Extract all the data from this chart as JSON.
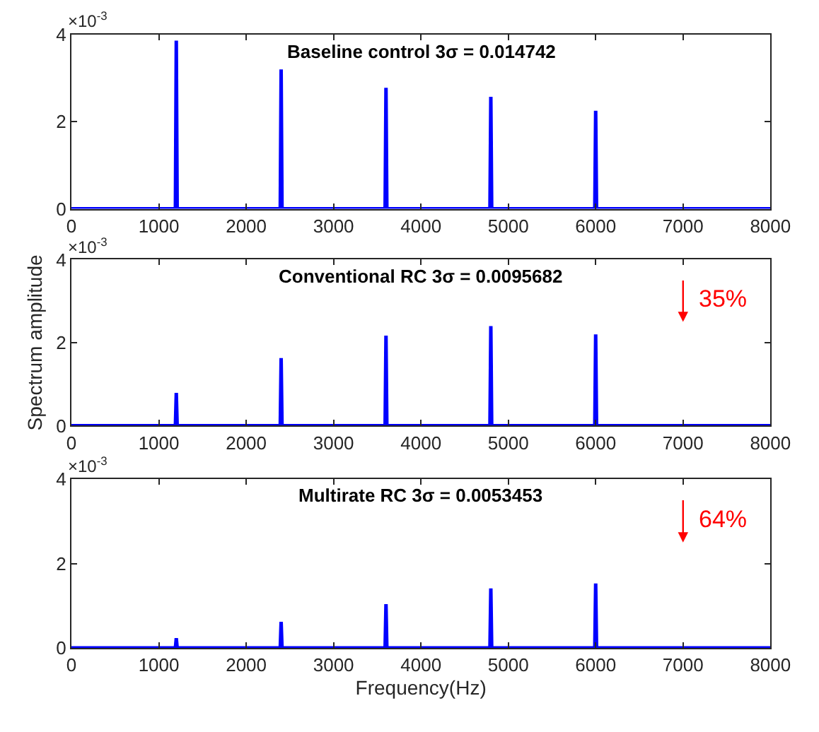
{
  "chart_data": [
    {
      "type": "line",
      "title": "Baseline control 3σ = 0.014742",
      "x": [
        0,
        1190,
        1200,
        1210,
        2390,
        2400,
        2410,
        3590,
        3600,
        3610,
        4790,
        4800,
        4810,
        5990,
        6000,
        6010,
        8000
      ],
      "series": [
        {
          "color": "#0000ff",
          "values": [
            0,
            0,
            3.86,
            0,
            0,
            3.2,
            0,
            0,
            2.78,
            0,
            0,
            2.57,
            0,
            0,
            2.25,
            0,
            0
          ]
        }
      ],
      "xlim": [
        0,
        8000
      ],
      "xticks": [
        0,
        1000,
        2000,
        3000,
        4000,
        5000,
        6000,
        7000,
        8000
      ],
      "ylim": [
        0,
        4
      ],
      "yticks": [
        0,
        2,
        4
      ],
      "marker": "none",
      "line_style": "solid",
      "annotations": [
        "×10$^{-3}$"
      ]
    },
    {
      "type": "line",
      "title": "Conventional RC 3σ = 0.0095682",
      "ylabel": "Spectrum amplitude",
      "x": [
        0,
        1190,
        1200,
        1210,
        2390,
        2400,
        2410,
        3590,
        3600,
        3610,
        4790,
        4800,
        4810,
        5990,
        6000,
        6010,
        8000
      ],
      "series": [
        {
          "color": "#0000ff",
          "values": [
            0,
            0,
            0.79,
            0,
            0,
            1.63,
            0,
            0,
            2.17,
            0,
            0,
            2.4,
            0,
            0,
            2.2,
            0,
            0
          ]
        }
      ],
      "xlim": [
        0,
        8000
      ],
      "xticks": [
        0,
        1000,
        2000,
        3000,
        4000,
        5000,
        6000,
        7000,
        8000
      ],
      "ylim": [
        0,
        4
      ],
      "yticks": [
        0,
        2,
        4
      ],
      "marker": "none",
      "line_style": "solid",
      "annotations": [
        "×10$^{-3}$",
        "35%"
      ]
    },
    {
      "type": "line",
      "title": "Multirate RC 3σ = 0.0053453",
      "xlabel": "Frequency(Hz)",
      "x": [
        0,
        1190,
        1200,
        1210,
        2390,
        2400,
        2410,
        3590,
        3600,
        3610,
        4790,
        4800,
        4810,
        5990,
        6000,
        6010,
        8000
      ],
      "series": [
        {
          "color": "#0000ff",
          "values": [
            0,
            0,
            0.23,
            0,
            0,
            0.62,
            0,
            0,
            1.04,
            0,
            0,
            1.41,
            0,
            0,
            1.53,
            0,
            0
          ]
        }
      ],
      "xlim": [
        0,
        8000
      ],
      "xticks": [
        0,
        1000,
        2000,
        3000,
        4000,
        5000,
        6000,
        7000,
        8000
      ],
      "ylim": [
        0,
        4
      ],
      "yticks": [
        0,
        2,
        4
      ],
      "marker": "none",
      "line_style": "solid",
      "annotations": [
        "×10$^{-3}$",
        "64%"
      ]
    }
  ]
}
